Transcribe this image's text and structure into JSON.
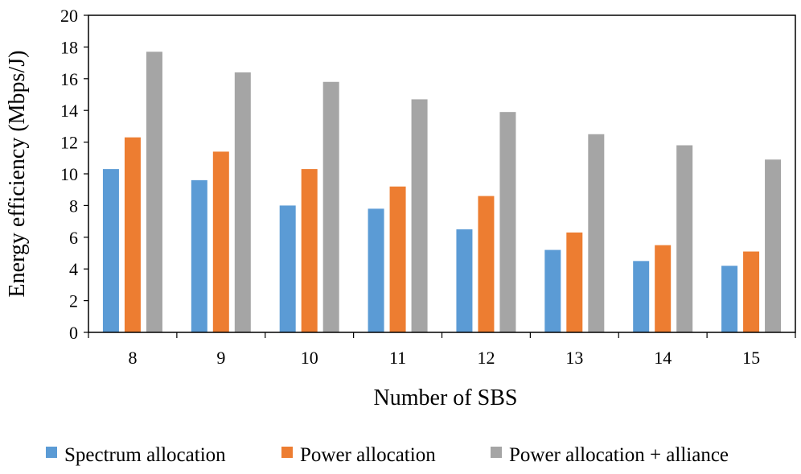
{
  "chart_data": {
    "type": "bar",
    "title": "",
    "xlabel": "Number of SBS",
    "ylabel": "Energy efficiency (Mbps/J)",
    "ylim": [
      0,
      20
    ],
    "yticks": [
      "0",
      "2",
      "4",
      "6",
      "8",
      "10",
      "12",
      "14",
      "16",
      "18",
      "20"
    ],
    "categories": [
      "8",
      "9",
      "10",
      "11",
      "12",
      "13",
      "14",
      "15"
    ],
    "grid": false,
    "legend_position": "bottom",
    "series": [
      {
        "name": "Spectrum allocation",
        "color": "#5b9bd5",
        "values": [
          10.3,
          9.6,
          8.0,
          7.8,
          6.5,
          5.2,
          4.5,
          4.2
        ]
      },
      {
        "name": "Power allocation",
        "color": "#ed7d31",
        "values": [
          12.3,
          11.4,
          10.3,
          9.2,
          8.6,
          6.3,
          5.5,
          5.1
        ]
      },
      {
        "name": "Power allocation + alliance",
        "color": "#a5a5a5",
        "values": [
          17.7,
          16.4,
          15.8,
          14.7,
          13.9,
          12.5,
          11.8,
          10.9
        ]
      }
    ]
  }
}
